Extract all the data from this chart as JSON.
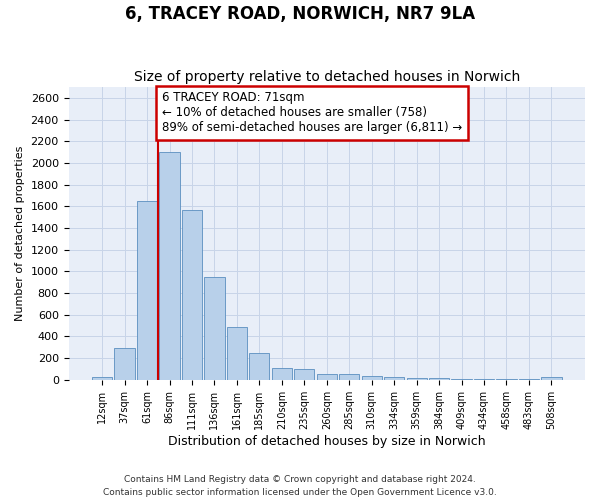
{
  "title": "6, TRACEY ROAD, NORWICH, NR7 9LA",
  "subtitle": "Size of property relative to detached houses in Norwich",
  "xlabel": "Distribution of detached houses by size in Norwich",
  "ylabel": "Number of detached properties",
  "footer1": "Contains HM Land Registry data © Crown copyright and database right 2024.",
  "footer2": "Contains public sector information licensed under the Open Government Licence v3.0.",
  "annotation_line1": "6 TRACEY ROAD: 71sqm",
  "annotation_line2": "← 10% of detached houses are smaller (758)",
  "annotation_line3": "89% of semi-detached houses are larger (6,811) →",
  "bar_color": "#b8d0ea",
  "bar_edge_color": "#5a8fc0",
  "marker_line_color": "#cc0000",
  "ylim_max": 2700,
  "yticks": [
    0,
    200,
    400,
    600,
    800,
    1000,
    1200,
    1400,
    1600,
    1800,
    2000,
    2200,
    2400,
    2600
  ],
  "categories": [
    "12sqm",
    "37sqm",
    "61sqm",
    "86sqm",
    "111sqm",
    "136sqm",
    "161sqm",
    "185sqm",
    "210sqm",
    "235sqm",
    "260sqm",
    "285sqm",
    "310sqm",
    "334sqm",
    "359sqm",
    "384sqm",
    "409sqm",
    "434sqm",
    "458sqm",
    "483sqm",
    "508sqm"
  ],
  "values": [
    25,
    290,
    1650,
    2100,
    1570,
    950,
    490,
    245,
    110,
    100,
    50,
    50,
    35,
    25,
    20,
    20,
    5,
    5,
    5,
    5,
    25
  ],
  "marker_at_index": 2.5,
  "bg_color": "#e8eef8",
  "grid_color": "#c8d4e8",
  "title_fontsize": 12,
  "subtitle_fontsize": 10,
  "ylabel_fontsize": 8,
  "xlabel_fontsize": 9,
  "tick_fontsize": 8,
  "xtick_fontsize": 7,
  "footer_fontsize": 6.5,
  "annotation_fontsize": 8.5
}
